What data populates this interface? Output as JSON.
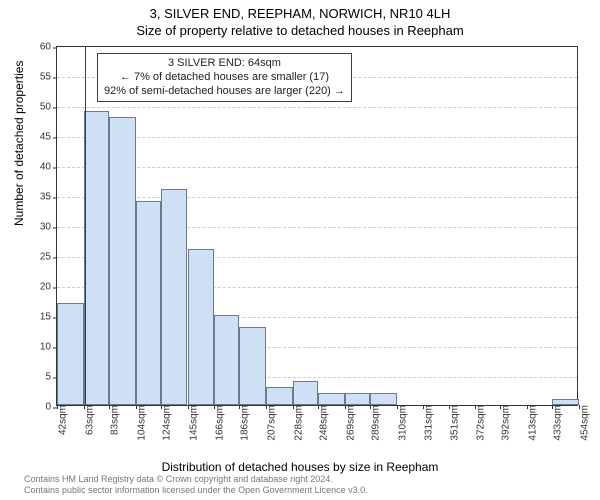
{
  "titles": {
    "address": "3, SILVER END, REEPHAM, NORWICH, NR10 4LH",
    "subtitle": "Size of property relative to detached houses in Reepham"
  },
  "axes": {
    "ylabel": "Number of detached properties",
    "xlabel": "Distribution of detached houses by size in Reepham",
    "ymin": 0,
    "ymax": 60,
    "ytick_step": 5,
    "grid_color": "#cccccc",
    "axis_color": "#333333"
  },
  "chart": {
    "type": "histogram",
    "bar_fill": "#cfe0f5",
    "bar_border": "#6b7a8f",
    "xtick_bins": [
      42,
      63,
      83,
      104,
      124,
      145,
      166,
      186,
      207,
      228,
      248,
      269,
      289,
      310,
      331,
      351,
      372,
      392,
      413,
      433,
      454
    ],
    "xtick_unit": "sqm",
    "values": [
      17,
      49,
      48,
      34,
      36,
      26,
      15,
      13,
      3,
      4,
      2,
      2,
      2,
      0,
      0,
      0,
      0,
      0,
      0,
      1
    ],
    "marker_bin": 64,
    "marker_color": "#cc0000"
  },
  "annotation": {
    "line1": "3 SILVER END: 64sqm",
    "line2": "← 7% of detached houses are smaller (17)",
    "line3": "92% of semi-detached houses are larger (220) →",
    "border_color": "#cc0000",
    "fontsize": 11
  },
  "attribution": {
    "line1": "Contains HM Land Registry data © Crown copyright and database right 2024.",
    "line2": "Contains public sector information licensed under the Open Government Licence v3.0."
  }
}
